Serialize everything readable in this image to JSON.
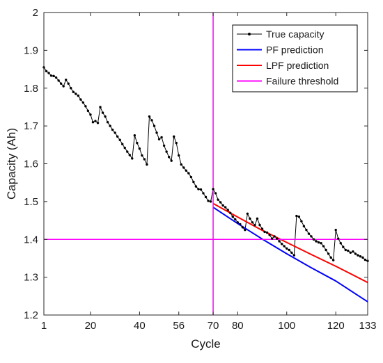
{
  "chart_data": {
    "type": "line",
    "title": "",
    "xlabel": "Cycle",
    "ylabel": "Capacity (Ah)",
    "xlim": [
      1,
      133
    ],
    "ylim": [
      1.2,
      2.0
    ],
    "xticks": [
      1,
      20,
      40,
      56,
      70,
      80,
      100,
      120,
      133
    ],
    "yticks": [
      1.2,
      1.3,
      1.4,
      1.5,
      1.6,
      1.7,
      1.8,
      1.9,
      2.0
    ],
    "grid": false,
    "legend_position": "top-right",
    "series": [
      {
        "name": "True capacity",
        "color": "#000000",
        "marker": "dot",
        "x": [
          1,
          2,
          3,
          4,
          5,
          6,
          7,
          8,
          9,
          10,
          11,
          12,
          13,
          14,
          15,
          16,
          17,
          18,
          19,
          20,
          21,
          22,
          23,
          24,
          25,
          26,
          27,
          28,
          29,
          30,
          31,
          32,
          33,
          34,
          35,
          36,
          37,
          38,
          39,
          40,
          41,
          42,
          43,
          44,
          45,
          46,
          47,
          48,
          49,
          50,
          51,
          52,
          53,
          54,
          55,
          56,
          57,
          58,
          59,
          60,
          61,
          62,
          63,
          64,
          65,
          66,
          67,
          68,
          69,
          70,
          71,
          72,
          73,
          74,
          75,
          76,
          77,
          78,
          79,
          80,
          81,
          82,
          83,
          84,
          85,
          86,
          87,
          88,
          89,
          90,
          91,
          92,
          93,
          94,
          95,
          96,
          97,
          98,
          99,
          100,
          101,
          102,
          103,
          104,
          105,
          106,
          107,
          108,
          109,
          110,
          111,
          112,
          113,
          114,
          115,
          116,
          117,
          118,
          119,
          120,
          121,
          122,
          123,
          124,
          125,
          126,
          127,
          128,
          129,
          130,
          131,
          132,
          133
        ],
        "y": [
          1.855,
          1.845,
          1.84,
          1.833,
          1.832,
          1.828,
          1.82,
          1.812,
          1.805,
          1.822,
          1.812,
          1.8,
          1.79,
          1.785,
          1.78,
          1.77,
          1.762,
          1.752,
          1.74,
          1.73,
          1.71,
          1.713,
          1.708,
          1.75,
          1.735,
          1.725,
          1.71,
          1.7,
          1.69,
          1.682,
          1.672,
          1.663,
          1.652,
          1.642,
          1.632,
          1.623,
          1.614,
          1.675,
          1.655,
          1.64,
          1.622,
          1.612,
          1.598,
          1.725,
          1.715,
          1.7,
          1.682,
          1.665,
          1.67,
          1.648,
          1.632,
          1.618,
          1.608,
          1.672,
          1.655,
          1.622,
          1.598,
          1.59,
          1.582,
          1.575,
          1.565,
          1.552,
          1.54,
          1.533,
          1.532,
          1.522,
          1.512,
          1.502,
          1.5,
          1.533,
          1.522,
          1.505,
          1.498,
          1.49,
          1.485,
          1.478,
          1.47,
          1.46,
          1.453,
          1.445,
          1.44,
          1.432,
          1.425,
          1.468,
          1.455,
          1.445,
          1.438,
          1.455,
          1.438,
          1.428,
          1.42,
          1.418,
          1.412,
          1.402,
          1.408,
          1.402,
          1.395,
          1.388,
          1.382,
          1.376,
          1.372,
          1.365,
          1.358,
          1.462,
          1.46,
          1.448,
          1.435,
          1.425,
          1.415,
          1.408,
          1.4,
          1.395,
          1.392,
          1.39,
          1.382,
          1.372,
          1.362,
          1.352,
          1.345,
          1.425,
          1.402,
          1.39,
          1.38,
          1.372,
          1.37,
          1.365,
          1.368,
          1.362,
          1.358,
          1.355,
          1.352,
          1.346,
          1.343
        ]
      },
      {
        "name": "PF prediction",
        "color": "#0000ff",
        "x": [
          70,
          80,
          90,
          100,
          110,
          120,
          133
        ],
        "y": [
          1.485,
          1.442,
          1.401,
          1.362,
          1.325,
          1.29,
          1.235
        ]
      },
      {
        "name": "LPF prediction",
        "color": "#ff0000",
        "x": [
          70,
          80,
          90,
          100,
          110,
          120,
          133
        ],
        "y": [
          1.495,
          1.459,
          1.424,
          1.392,
          1.36,
          1.329,
          1.286
        ]
      },
      {
        "name": "Failure threshold",
        "color": "#ff00ff",
        "kind": "threshold-lines",
        "hline_y": 1.4,
        "vline_x": 70
      }
    ]
  }
}
